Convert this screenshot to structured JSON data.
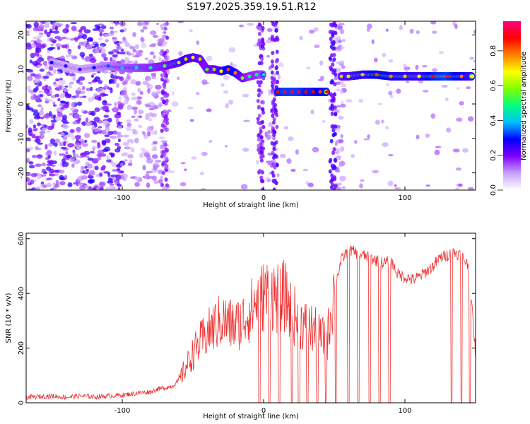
{
  "figure_title": "S197.2025.359.19.51.R12",
  "chart_data": [
    {
      "type": "heatmap",
      "title": "S197.2025.359.19.51.R12",
      "xlabel": "Height of straight line (km)",
      "ylabel": "Frequency (Hz)",
      "xlim": [
        -168,
        150
      ],
      "ylim": [
        -25,
        24
      ],
      "xticks": [
        -100,
        0,
        100
      ],
      "yticks": [
        -20,
        -10,
        0,
        10,
        20
      ],
      "colorbar": {
        "label": "Normalized spectral amplitude",
        "range": [
          0,
          0.97
        ],
        "ticks": [
          0.0,
          0.2,
          0.4,
          0.6,
          0.8
        ],
        "tick_labels": [
          "0.0",
          "0.2",
          "0.4",
          "0.6",
          "0.8"
        ],
        "colormap": [
          "#ffffff",
          "#c8a0ff",
          "#8000ff",
          "#0000ff",
          "#00c0ff",
          "#00ff80",
          "#80ff00",
          "#ffff00",
          "#ff8000",
          "#ff0000",
          "#ff0080"
        ]
      },
      "ridge": {
        "name": "dominant frequency",
        "x": [
          -150,
          -140,
          -130,
          -120,
          -110,
          -100,
          -90,
          -80,
          -70,
          -60,
          -55,
          -50,
          -45,
          -40,
          -35,
          -30,
          -25,
          -20,
          -15,
          -10,
          -5,
          0,
          5,
          10,
          15,
          20,
          25,
          30,
          35,
          40,
          45,
          50,
          55,
          60,
          70,
          80,
          90,
          100,
          110,
          120,
          130,
          140,
          148
        ],
        "freq": [
          12,
          11,
          10,
          10.5,
          11,
          10.5,
          10.5,
          10.5,
          11,
          12,
          13,
          13.5,
          13,
          10,
          10,
          9.5,
          10,
          9,
          7.5,
          8,
          8.5,
          8.5,
          null,
          3.5,
          3.5,
          3.5,
          3.5,
          3.5,
          3.5,
          3.5,
          3.5,
          null,
          8,
          8,
          8.5,
          8.5,
          8,
          8,
          8,
          8,
          8,
          8,
          8
        ],
        "amplitude": [
          0.3,
          0.25,
          0.25,
          0.3,
          0.35,
          0.4,
          0.45,
          0.5,
          0.55,
          0.65,
          0.75,
          0.7,
          0.6,
          0.55,
          0.6,
          0.7,
          0.85,
          0.8,
          0.6,
          0.5,
          0.5,
          0.45,
          null,
          0.9,
          0.95,
          0.95,
          0.95,
          0.9,
          0.9,
          0.85,
          0.9,
          null,
          0.6,
          0.65,
          0.75,
          0.85,
          0.8,
          0.75,
          0.7,
          0.9,
          0.95,
          0.8,
          0.7
        ]
      }
    },
    {
      "type": "line",
      "xlabel": "Height of straight line (km)",
      "ylabel": "SNR (10 * v/v)",
      "xlim": [
        -168,
        150
      ],
      "ylim": [
        0,
        620
      ],
      "xticks": [
        -100,
        0,
        100
      ],
      "yticks": [
        0,
        200,
        400,
        600
      ],
      "series": [
        {
          "name": "SNR",
          "color": "#ee3333",
          "x": [
            -168,
            -150,
            -140,
            -130,
            -120,
            -110,
            -100,
            -90,
            -80,
            -75,
            -70,
            -65,
            -60,
            -55,
            -50,
            -45,
            -40,
            -35,
            -30,
            -25,
            -20,
            -15,
            -10,
            -5,
            0,
            5,
            10,
            15,
            20,
            25,
            30,
            35,
            40,
            45,
            50,
            55,
            60,
            65,
            70,
            75,
            80,
            85,
            90,
            95,
            100,
            105,
            110,
            115,
            120,
            125,
            130,
            135,
            140,
            145,
            150
          ],
          "y": [
            20,
            25,
            20,
            25,
            22,
            25,
            28,
            35,
            40,
            50,
            55,
            60,
            80,
            130,
            180,
            220,
            250,
            280,
            300,
            290,
            280,
            300,
            330,
            370,
            390,
            400,
            380,
            390,
            330,
            300,
            280,
            270,
            240,
            230,
            420,
            520,
            560,
            550,
            540,
            530,
            520,
            510,
            520,
            470,
            460,
            450,
            460,
            480,
            500,
            530,
            540,
            550,
            540,
            500,
            180
          ],
          "dropouts_x": [
            -3,
            4,
            11,
            20,
            25,
            31,
            38,
            44,
            51,
            60,
            67,
            75,
            82,
            89,
            133,
            140,
            146
          ]
        }
      ]
    }
  ]
}
